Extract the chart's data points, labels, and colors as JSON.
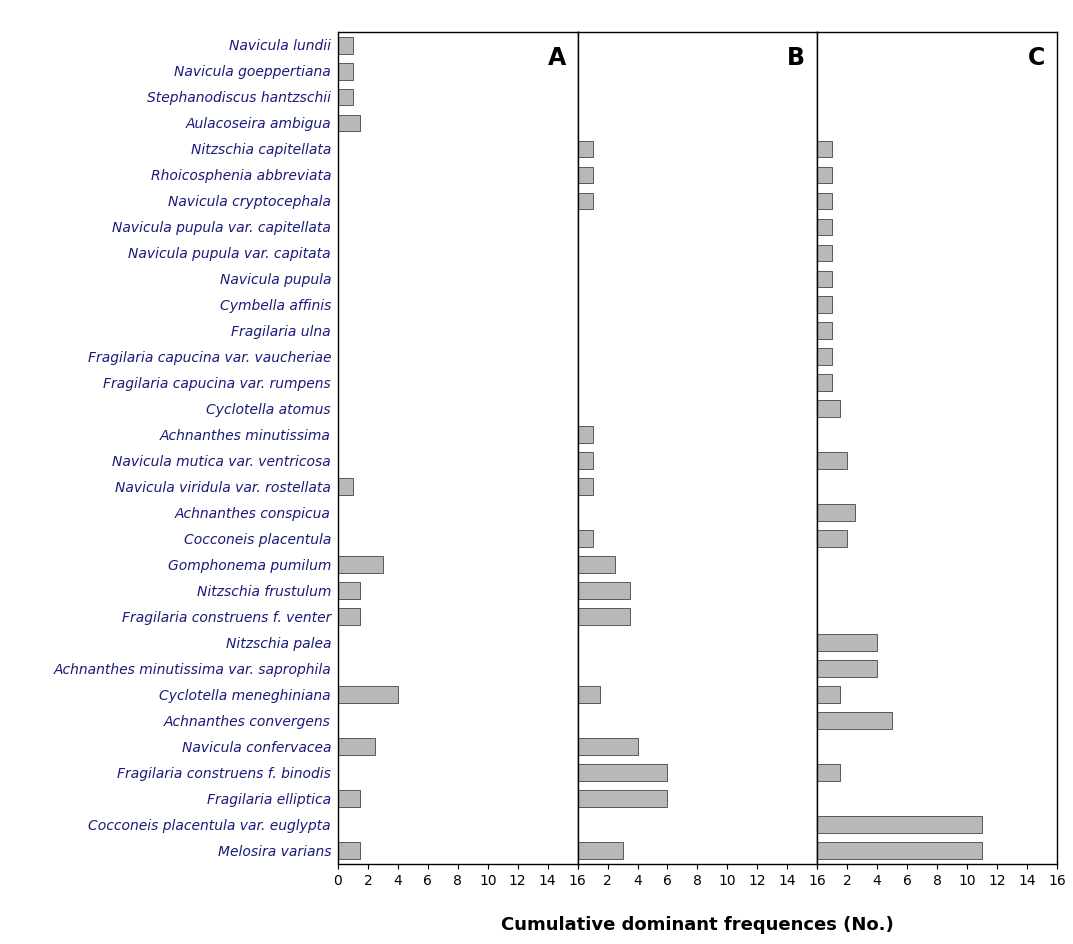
{
  "species": [
    "Navicula lundii",
    "Navicula goeppertiana",
    "Stephanodiscus hantzschii",
    "Aulacoseira ambigua",
    "Nitzschia capitellata",
    "Rhoicosphenia abbreviata",
    "Navicula cryptocephala",
    "Navicula pupula var. capitellata",
    "Navicula pupula var. capitata",
    "Navicula pupula",
    "Cymbella affinis",
    "Fragilaria ulna",
    "Fragilaria capucina var. vaucheriae",
    "Fragilaria capucina var. rumpens",
    "Cyclotella atomus",
    "Achnanthes minutissima",
    "Navicula mutica var. ventricosa",
    "Navicula viridula var. rostellata",
    "Achnanthes conspicua",
    "Cocconeis placentula",
    "Gomphonema pumilum",
    "Nitzschia frustulum",
    "Fragilaria construens f. venter",
    "Nitzschia palea",
    "Achnanthes minutissima var. saprophila",
    "Cyclotella meneghiniana",
    "Achnanthes convergens",
    "Navicula confervacea",
    "Fragilaria construens f. binodis",
    "Fragilaria elliptica",
    "Cocconeis placentula var. euglypta",
    "Melosira varians"
  ],
  "A": [
    1,
    1,
    1,
    1.5,
    0,
    0,
    0,
    0,
    0,
    0,
    0,
    0,
    0,
    0,
    0,
    0,
    0,
    1,
    0,
    0,
    3,
    1.5,
    1.5,
    0,
    0,
    4,
    0,
    2.5,
    0,
    1.5,
    0,
    1.5
  ],
  "B": [
    0,
    0,
    0,
    0,
    1,
    1,
    1,
    0,
    0,
    0,
    0,
    0,
    0,
    0,
    0,
    1,
    1,
    1,
    0,
    1,
    2.5,
    3.5,
    3.5,
    0,
    0,
    1.5,
    0,
    4,
    6,
    6,
    0,
    3
  ],
  "C": [
    0,
    0,
    0,
    0,
    1,
    1,
    1,
    1,
    1,
    1,
    1,
    1,
    1,
    1,
    1.5,
    0,
    2,
    0,
    2.5,
    2,
    0,
    0,
    0,
    4,
    4,
    1.5,
    5,
    0,
    1.5,
    0,
    11,
    11
  ],
  "bar_color": "#b8b8b8",
  "bar_edge_color": "#444444",
  "xlabel": "Cumulative dominant frequences (No.)",
  "xticks": [
    0,
    2,
    4,
    6,
    8,
    10,
    12,
    14,
    16
  ],
  "label_A": "A",
  "label_B": "B",
  "label_C": "C",
  "label_fontsize": 17,
  "tick_fontsize": 10,
  "species_fontsize": 10,
  "xlabel_fontsize": 13,
  "species_color": "#1a1a7a"
}
